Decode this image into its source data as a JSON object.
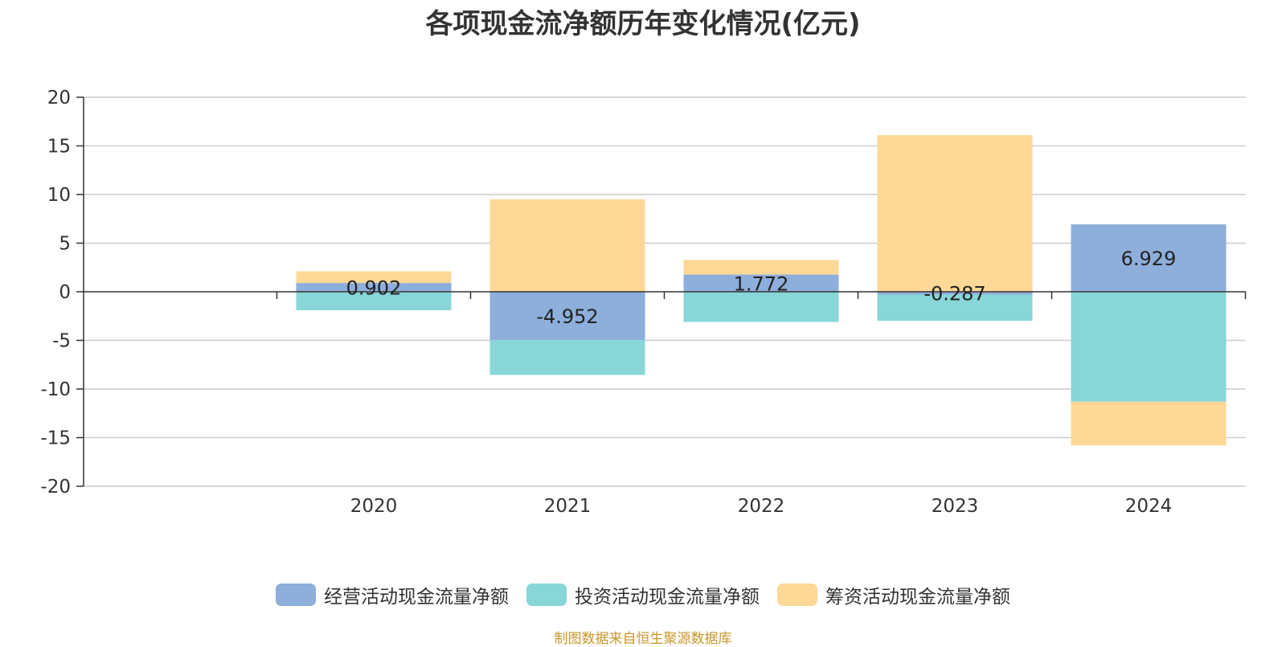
{
  "chart_data": {
    "type": "bar",
    "stacked": true,
    "title": "各项现金流净额历年变化情况(亿元)",
    "categories": [
      "2020",
      "2021",
      "2022",
      "2023",
      "2024"
    ],
    "ylim": [
      -20,
      20
    ],
    "yticks": [
      20,
      15,
      10,
      5,
      0,
      -5,
      -10,
      -15,
      -20
    ],
    "grid": true,
    "legend_position": "bottom",
    "series": [
      {
        "name": "经营活动现金流量净额",
        "color": "#8eaedb",
        "values": [
          0.902,
          -4.952,
          1.772,
          -0.287,
          6.929
        ],
        "labels": [
          "0.902",
          "-4.952",
          "1.772",
          "-0.287",
          "6.929"
        ]
      },
      {
        "name": "投资活动现金流量净额",
        "color": "#88d6d8",
        "values": [
          -1.9,
          -3.6,
          -3.1,
          -2.7,
          -11.3
        ]
      },
      {
        "name": "筹资活动现金流量净额",
        "color": "#fed897",
        "values": [
          1.2,
          9.5,
          1.5,
          16.1,
          -4.5
        ]
      }
    ]
  },
  "footer": {
    "source": "制图数据来自恒生聚源数据库"
  }
}
